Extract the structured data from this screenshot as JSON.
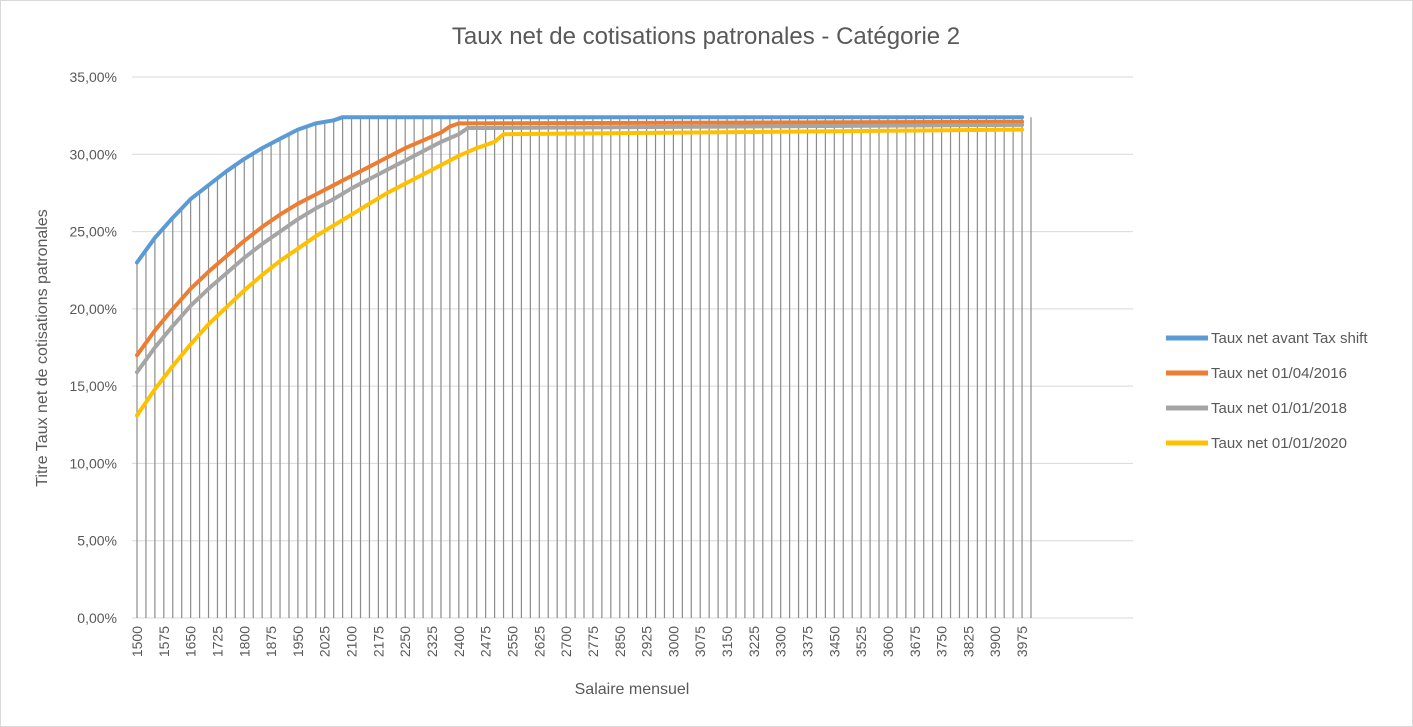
{
  "chart_data": {
    "type": "line",
    "title": "Taux net de cotisations patronales - Catégorie 2",
    "xlabel": "Salaire mensuel",
    "ylabel": "Titre Taux net de cotisations patronales",
    "x_start": 1500,
    "x_step": 25,
    "x_count": 101,
    "x_tick_labels": [
      "1500",
      "1575",
      "1650",
      "1725",
      "1800",
      "1875",
      "1950",
      "2025",
      "2100",
      "2175",
      "2250",
      "2325",
      "2400",
      "2475",
      "2550",
      "2625",
      "2700",
      "2775",
      "2850",
      "2925",
      "3000",
      "3075",
      "3150",
      "3225",
      "3300",
      "3375",
      "3450",
      "3525",
      "3600",
      "3675",
      "3750",
      "3825",
      "3900",
      "3975"
    ],
    "y_tick_labels": [
      "0,00%",
      "5,00%",
      "10,00%",
      "15,00%",
      "20,00%",
      "25,00%",
      "30,00%",
      "35,00%"
    ],
    "ylim": [
      0,
      35
    ],
    "y_unit": "%",
    "grid": "horizontal",
    "drop_lines": true,
    "legend_position": "right",
    "series": [
      {
        "name": "Taux net avant Tax shift",
        "color": "#5b9bd5",
        "points": [
          [
            1500,
            23.0
          ],
          [
            1550,
            24.6
          ],
          [
            1600,
            25.9
          ],
          [
            1650,
            27.1
          ],
          [
            1700,
            28.0
          ],
          [
            1750,
            28.9
          ],
          [
            1800,
            29.7
          ],
          [
            1850,
            30.4
          ],
          [
            1900,
            31.0
          ],
          [
            1950,
            31.6
          ],
          [
            2000,
            32.0
          ],
          [
            2050,
            32.2
          ],
          [
            2075,
            32.4
          ],
          [
            3975,
            32.4
          ]
        ]
      },
      {
        "name": "Taux net 01/04/2016",
        "color": "#ed7d31",
        "points": [
          [
            1500,
            17.0
          ],
          [
            1550,
            18.6
          ],
          [
            1600,
            20.0
          ],
          [
            1650,
            21.3
          ],
          [
            1700,
            22.4
          ],
          [
            1750,
            23.4
          ],
          [
            1800,
            24.4
          ],
          [
            1850,
            25.3
          ],
          [
            1900,
            26.1
          ],
          [
            1950,
            26.8
          ],
          [
            2000,
            27.4
          ],
          [
            2050,
            28.0
          ],
          [
            2100,
            28.6
          ],
          [
            2150,
            29.2
          ],
          [
            2200,
            29.8
          ],
          [
            2250,
            30.4
          ],
          [
            2300,
            30.9
          ],
          [
            2350,
            31.4
          ],
          [
            2375,
            31.8
          ],
          [
            2400,
            32.0
          ],
          [
            3975,
            32.1
          ]
        ]
      },
      {
        "name": "Taux net 01/01/2018",
        "color": "#a5a5a5",
        "points": [
          [
            1500,
            15.9
          ],
          [
            1550,
            17.5
          ],
          [
            1600,
            18.9
          ],
          [
            1650,
            20.2
          ],
          [
            1700,
            21.3
          ],
          [
            1750,
            22.3
          ],
          [
            1800,
            23.3
          ],
          [
            1850,
            24.2
          ],
          [
            1900,
            25.0
          ],
          [
            1950,
            25.8
          ],
          [
            2000,
            26.5
          ],
          [
            2050,
            27.1
          ],
          [
            2100,
            27.8
          ],
          [
            2150,
            28.4
          ],
          [
            2200,
            29.0
          ],
          [
            2250,
            29.6
          ],
          [
            2300,
            30.2
          ],
          [
            2350,
            30.8
          ],
          [
            2400,
            31.3
          ],
          [
            2425,
            31.7
          ],
          [
            2500,
            31.7
          ],
          [
            3975,
            31.9
          ]
        ]
      },
      {
        "name": "Taux net 01/01/2020",
        "color": "#ffc000",
        "points": [
          [
            1500,
            13.1
          ],
          [
            1550,
            14.8
          ],
          [
            1600,
            16.3
          ],
          [
            1650,
            17.7
          ],
          [
            1700,
            19.0
          ],
          [
            1750,
            20.1
          ],
          [
            1800,
            21.2
          ],
          [
            1850,
            22.2
          ],
          [
            1900,
            23.1
          ],
          [
            1950,
            23.9
          ],
          [
            2000,
            24.7
          ],
          [
            2050,
            25.4
          ],
          [
            2100,
            26.1
          ],
          [
            2150,
            26.8
          ],
          [
            2200,
            27.5
          ],
          [
            2250,
            28.1
          ],
          [
            2300,
            28.7
          ],
          [
            2350,
            29.3
          ],
          [
            2400,
            29.9
          ],
          [
            2450,
            30.4
          ],
          [
            2500,
            30.8
          ],
          [
            2525,
            31.3
          ],
          [
            3975,
            31.6
          ]
        ]
      }
    ]
  }
}
